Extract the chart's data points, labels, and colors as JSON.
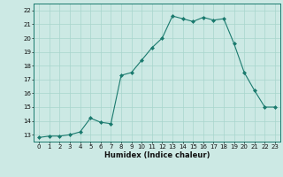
{
  "x": [
    0,
    1,
    2,
    3,
    4,
    5,
    6,
    7,
    8,
    9,
    10,
    11,
    12,
    13,
    14,
    15,
    16,
    17,
    18,
    19,
    20,
    21,
    22,
    23
  ],
  "y": [
    12.8,
    12.9,
    12.9,
    13.0,
    13.2,
    14.2,
    13.9,
    13.8,
    17.3,
    17.5,
    18.4,
    19.3,
    20.0,
    21.6,
    21.4,
    21.2,
    21.5,
    21.3,
    21.4,
    19.6,
    17.5,
    16.2,
    15.0,
    15.0
  ],
  "line_color": "#1a7a6e",
  "marker": "D",
  "marker_size": 2.0,
  "bg_color": "#cce9e4",
  "grid_color": "#a8d5cc",
  "xlabel": "Humidex (Indice chaleur)",
  "ylim": [
    12.5,
    22.5
  ],
  "xlim": [
    -0.5,
    23.5
  ],
  "yticks": [
    13,
    14,
    15,
    16,
    17,
    18,
    19,
    20,
    21,
    22
  ],
  "xticks": [
    0,
    1,
    2,
    3,
    4,
    5,
    6,
    7,
    8,
    9,
    10,
    11,
    12,
    13,
    14,
    15,
    16,
    17,
    18,
    19,
    20,
    21,
    22,
    23
  ],
  "font_color": "#111111",
  "tick_fontsize": 5.0,
  "xlabel_fontsize": 6.0
}
